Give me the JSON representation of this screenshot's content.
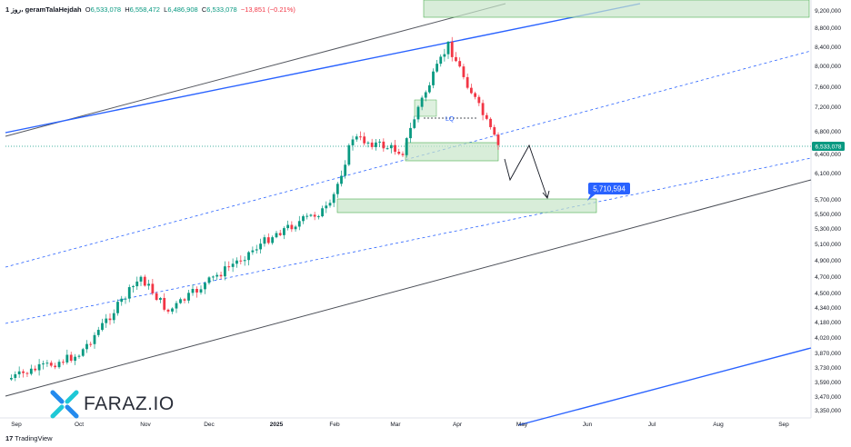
{
  "header": {
    "symbol": "1 روز، geramTalaHejdah",
    "open_label": "O",
    "open": "6,533,078",
    "high_label": "H",
    "high": "6,558,472",
    "low_label": "L",
    "low": "6,486,908",
    "close_label": "C",
    "close": "6,533,078",
    "change": "−13,851 (−0.21%)"
  },
  "footer": {
    "brand": "TradingView"
  },
  "logo": {
    "text": "FARAZ.IO"
  },
  "annotations": {
    "lq": "LQ",
    "target": "5,710,594",
    "current_price": "6,533,078"
  },
  "colors": {
    "up": "#089981",
    "down": "#f23645",
    "zone_fill": "#c8e6c9",
    "zone_stroke": "#4caf50",
    "blue_line": "#2962ff",
    "dark_line": "#1e222d",
    "target_label": "#2962ff",
    "price_label": "#089981"
  },
  "chart_data": {
    "type": "candlestick",
    "title": "",
    "x_ticks": [
      "Sep",
      "Oct",
      "Nov",
      "Dec",
      "2025",
      "Feb",
      "Mar",
      "Apr",
      "May",
      "Jun",
      "Jul",
      "Aug",
      "Sep"
    ],
    "y_ticks": [
      "9,200,000",
      "8,800,000",
      "8,400,000",
      "8,000,000",
      "7,600,000",
      "7,200,000",
      "6,800,000",
      "6,400,000",
      "6,100,000",
      "5,700,000",
      "5,500,000",
      "5,300,000",
      "5,100,000",
      "4,900,000",
      "4,700,000",
      "4,500,000",
      "4,340,000",
      "4,180,000",
      "4,020,000",
      "3,870,000",
      "3,730,000",
      "3,590,000",
      "3,470,000",
      "3,350,000"
    ],
    "ylim": [
      3300000,
      9300000
    ],
    "grid": false,
    "price_path": [
      [
        "Sep",
        3620000
      ],
      [
        "Oct",
        3860000
      ],
      [
        "Nov",
        4700000
      ],
      [
        "Nov",
        4300000
      ],
      [
        "Dec",
        4650000
      ],
      [
        "2025",
        5250000
      ],
      [
        "Feb",
        5600000
      ],
      [
        "Feb",
        6700000
      ],
      [
        "Mar",
        6450000
      ],
      [
        "Mar",
        7200000
      ],
      [
        "Apr",
        8450000
      ],
      [
        "Apr",
        6550000
      ]
    ],
    "last_close": 6533078,
    "target": 5710594,
    "zones": [
      "8,900,000 – 9,300,000",
      "6,400,000 – 6,620,000",
      "5,550,000 – 5,710,000"
    ]
  }
}
